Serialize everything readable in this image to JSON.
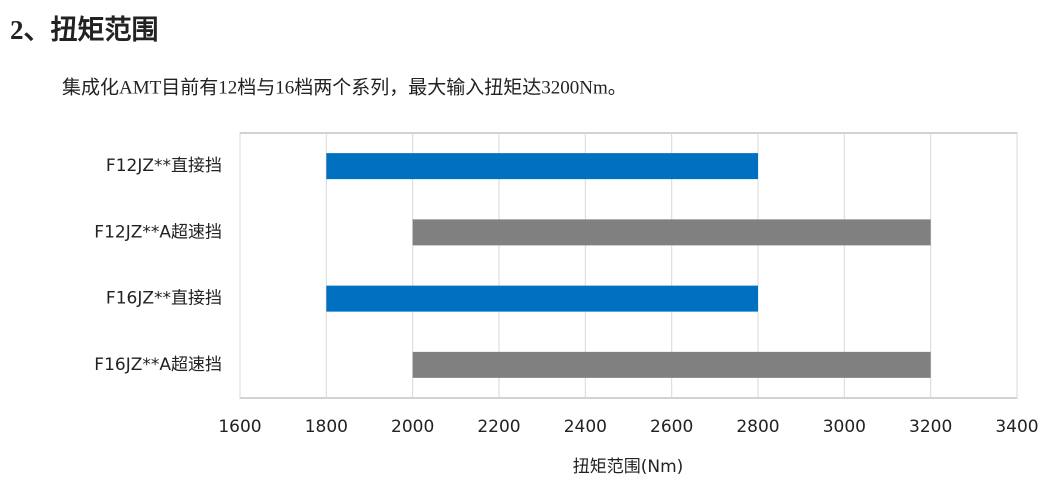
{
  "heading": "2、扭矩范围",
  "paragraph": "集成化AMT目前有12档与16档两个系列，最大输入扭矩达3200Nm。",
  "chart_data": {
    "type": "floating-bar",
    "x_label": "扭矩范围(Nm)",
    "categories": [
      "F12JZ**直接挡",
      "F12JZ**A超速挡",
      "F16JZ**直接挡",
      "F16JZ**A超速挡"
    ],
    "starts": [
      1800,
      2000,
      1800,
      2000
    ],
    "ends": [
      2800,
      3200,
      2800,
      3200
    ],
    "colors": [
      "#0070c0",
      "#808080",
      "#0070c0",
      "#808080"
    ],
    "xlim": [
      1600,
      3400
    ],
    "xticks": [
      1600,
      1800,
      2000,
      2200,
      2400,
      2600,
      2800,
      3000,
      3200,
      3400
    ],
    "grid": true
  }
}
